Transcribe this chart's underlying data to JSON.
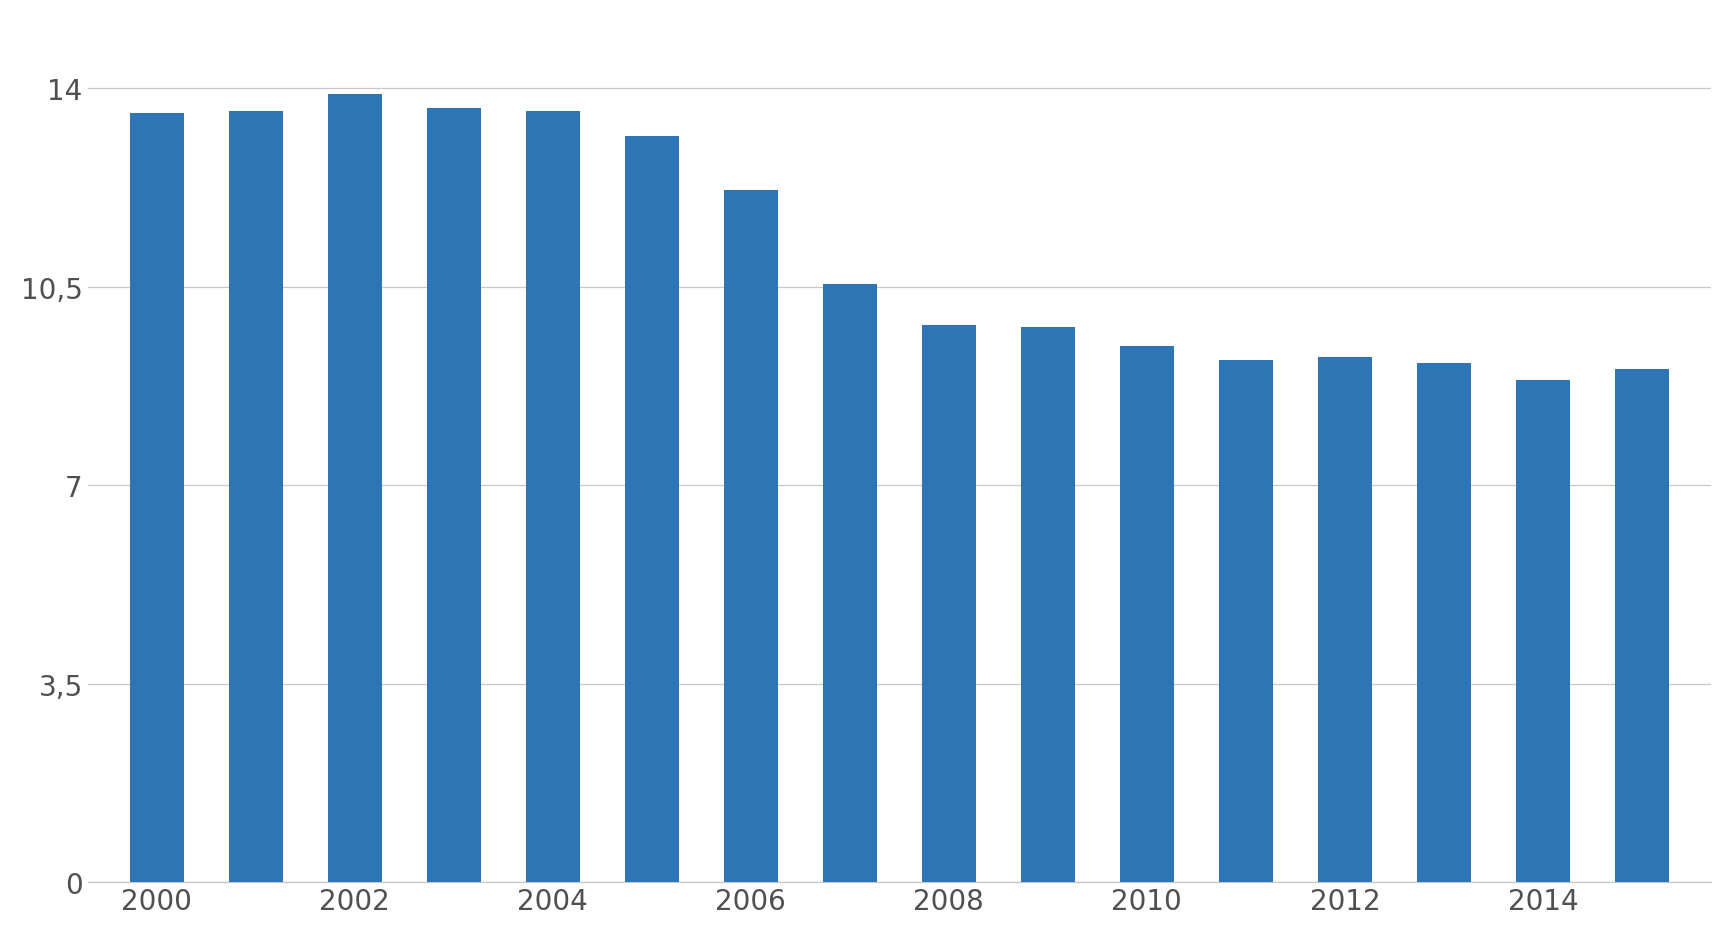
{
  "years": [
    2000,
    2001,
    2002,
    2003,
    2004,
    2005,
    2006,
    2007,
    2008,
    2009,
    2010,
    2011,
    2012,
    2013,
    2014,
    2015
  ],
  "values": [
    13.55,
    13.6,
    13.9,
    13.65,
    13.6,
    13.15,
    12.2,
    10.55,
    9.82,
    9.78,
    9.45,
    9.2,
    9.25,
    9.15,
    8.85,
    9.05
  ],
  "bar_color": "#2E75B6",
  "background_color": "#FFFFFF",
  "plot_bg_color": "#FFFFFF",
  "yticks": [
    0,
    3.5,
    7,
    10.5,
    14
  ],
  "ytick_labels": [
    "0",
    "3,5",
    "7",
    "10,5",
    "14"
  ],
  "ylim": [
    0,
    15.2
  ],
  "xtick_positions": [
    0,
    2,
    4,
    6,
    8,
    10,
    12,
    14
  ],
  "xtick_labels": [
    "2000",
    "2002",
    "2004",
    "2006",
    "2008",
    "2010",
    "2012",
    "2014"
  ],
  "grid_color": "#C8C8C8",
  "grid_linewidth": 0.9,
  "bar_width": 0.55
}
